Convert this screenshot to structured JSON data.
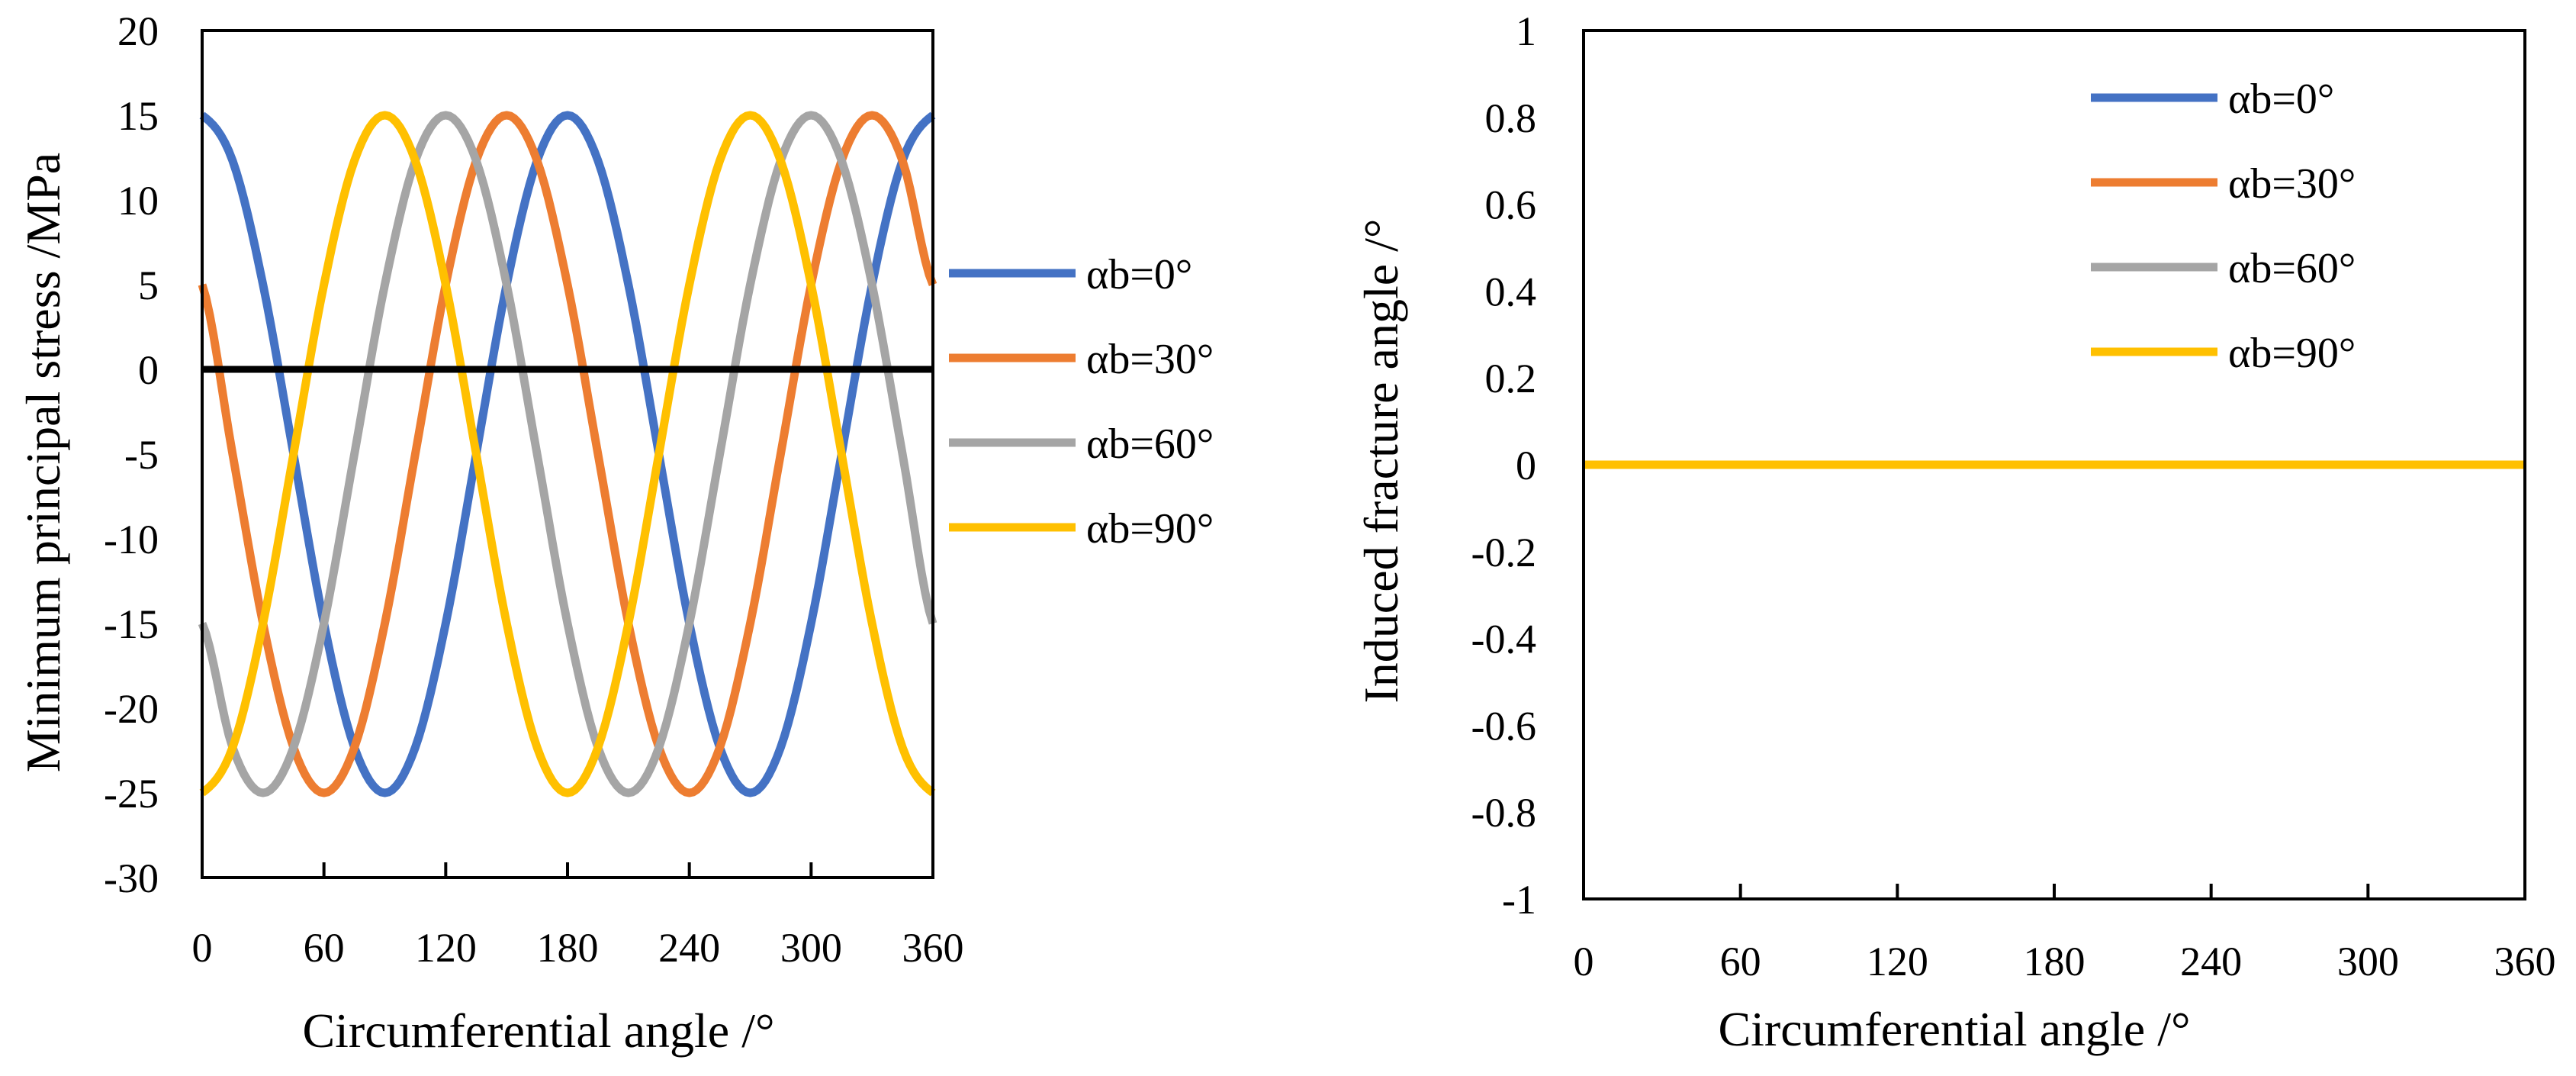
{
  "chart_data": [
    {
      "type": "line",
      "title": "",
      "xlabel": "Circumferential angle /°",
      "ylabel": "Minimum principal stress /MPa",
      "xlim": [
        0,
        360
      ],
      "ylim": [
        -30,
        20
      ],
      "x_ticks": [
        "0",
        "60",
        "120",
        "180",
        "240",
        "300",
        "360"
      ],
      "y_ticks": [
        "20",
        "15",
        "10",
        "5",
        "0",
        "-5",
        "-10",
        "-15",
        "-20",
        "-25",
        "-30"
      ],
      "grid": false,
      "legend_position": "right",
      "reference_line": {
        "y": 0,
        "color": "#000000"
      },
      "x": [
        0,
        15,
        30,
        45,
        60,
        75,
        90,
        105,
        120,
        135,
        150,
        165,
        180,
        195,
        210,
        225,
        240,
        255,
        270,
        285,
        300,
        315,
        330,
        345,
        360
      ],
      "series": [
        {
          "name": "αb=0°",
          "color": "#4472C4",
          "values": [
            15,
            12.32,
            5,
            -5,
            -15,
            -22.32,
            -25,
            -22.32,
            -15,
            -5,
            5,
            12.32,
            15,
            12.32,
            5,
            -5,
            -15,
            -22.32,
            -25,
            -22.32,
            -15,
            -5,
            5,
            12.32,
            15
          ]
        },
        {
          "name": "αb=30°",
          "color": "#ED7D31",
          "values": [
            5,
            -5,
            -15,
            -22.32,
            -25,
            -22.32,
            -15,
            -5,
            5,
            12.32,
            15,
            12.32,
            5,
            -5,
            -15,
            -22.32,
            -25,
            -22.32,
            -15,
            -5,
            5,
            12.32,
            15,
            12.32,
            5
          ]
        },
        {
          "name": "αb=60°",
          "color": "#A5A5A5",
          "values": [
            -15,
            -22.32,
            -25,
            -22.32,
            -15,
            -5,
            5,
            12.32,
            15,
            12.32,
            5,
            -5,
            -15,
            -22.32,
            -25,
            -22.32,
            -15,
            -5,
            5,
            12.32,
            15,
            12.32,
            5,
            -5,
            -15
          ]
        },
        {
          "name": "αb=90°",
          "color": "#FFC000",
          "values": [
            -25,
            -22.32,
            -15,
            -5,
            5,
            12.32,
            15,
            12.32,
            5,
            -5,
            -15,
            -22.32,
            -25,
            -22.32,
            -15,
            -5,
            5,
            12.32,
            15,
            12.32,
            5,
            -5,
            -15,
            -22.32,
            -25
          ]
        }
      ]
    },
    {
      "type": "line",
      "title": "",
      "xlabel": "Circumferential angle /°",
      "ylabel": "Induced fracture angle /°",
      "xlim": [
        0,
        360
      ],
      "ylim": [
        -1,
        1
      ],
      "x_ticks": [
        "0",
        "60",
        "120",
        "180",
        "240",
        "300",
        "360"
      ],
      "y_ticks": [
        "1",
        "0.8",
        "0.6",
        "0.4",
        "0.2",
        "0",
        "-0.2",
        "-0.4",
        "-0.6",
        "-0.8",
        "-1"
      ],
      "grid": false,
      "legend_position": "top-right",
      "x": [
        0,
        360
      ],
      "series": [
        {
          "name": "αb=0°",
          "color": "#4472C4",
          "values": [
            0,
            0
          ]
        },
        {
          "name": "αb=30°",
          "color": "#ED7D31",
          "values": [
            0,
            0
          ]
        },
        {
          "name": "αb=60°",
          "color": "#A5A5A5",
          "values": [
            0,
            0
          ]
        },
        {
          "name": "αb=90°",
          "color": "#FFC000",
          "values": [
            0,
            0
          ]
        }
      ]
    }
  ]
}
